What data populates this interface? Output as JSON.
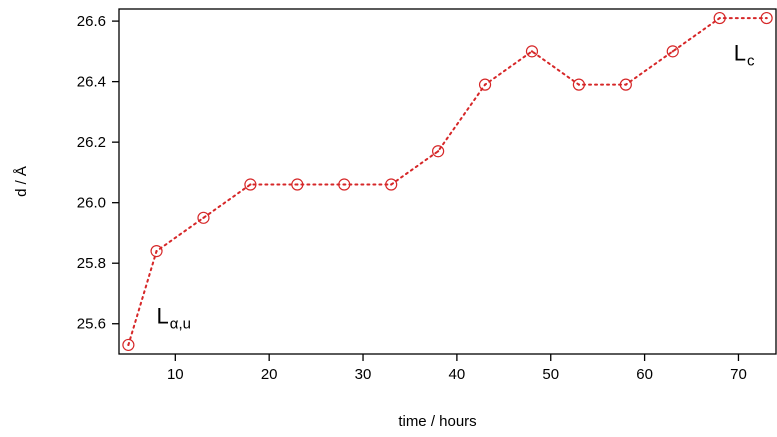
{
  "chart_data": {
    "type": "line",
    "title": "",
    "xlabel": "time / hours",
    "ylabel": "d / Å",
    "xlim": [
      4,
      74
    ],
    "ylim": [
      25.5,
      26.64
    ],
    "x_ticks": [
      10,
      20,
      30,
      40,
      50,
      60,
      70
    ],
    "x_tick_labels": [
      "10",
      "20",
      "30",
      "40",
      "50",
      "60",
      "70"
    ],
    "y_ticks": [
      25.6,
      25.8,
      26.0,
      26.2,
      26.4,
      26.6
    ],
    "y_tick_labels": [
      "25.6",
      "25.8",
      "26.0",
      "26.2",
      "26.4",
      "26.6"
    ],
    "grid": false,
    "legend": "none",
    "series": [
      {
        "color": "#d62728",
        "marker": "circle-dot",
        "line_style": "dotted",
        "x": [
          5,
          8,
          13,
          18,
          23,
          28,
          33,
          38,
          43,
          48,
          53,
          58,
          63,
          68,
          73
        ],
        "y": [
          25.53,
          25.84,
          25.95,
          26.06,
          26.06,
          26.06,
          26.06,
          26.17,
          26.39,
          26.5,
          26.39,
          26.39,
          26.5,
          26.61,
          26.61
        ]
      }
    ],
    "annotations": [
      {
        "main": "L",
        "sub": "α,u",
        "at_x": 8,
        "at_y": 25.6
      },
      {
        "main": "L",
        "sub": "c",
        "at_x": 69.5,
        "at_y": 26.47
      }
    ]
  }
}
